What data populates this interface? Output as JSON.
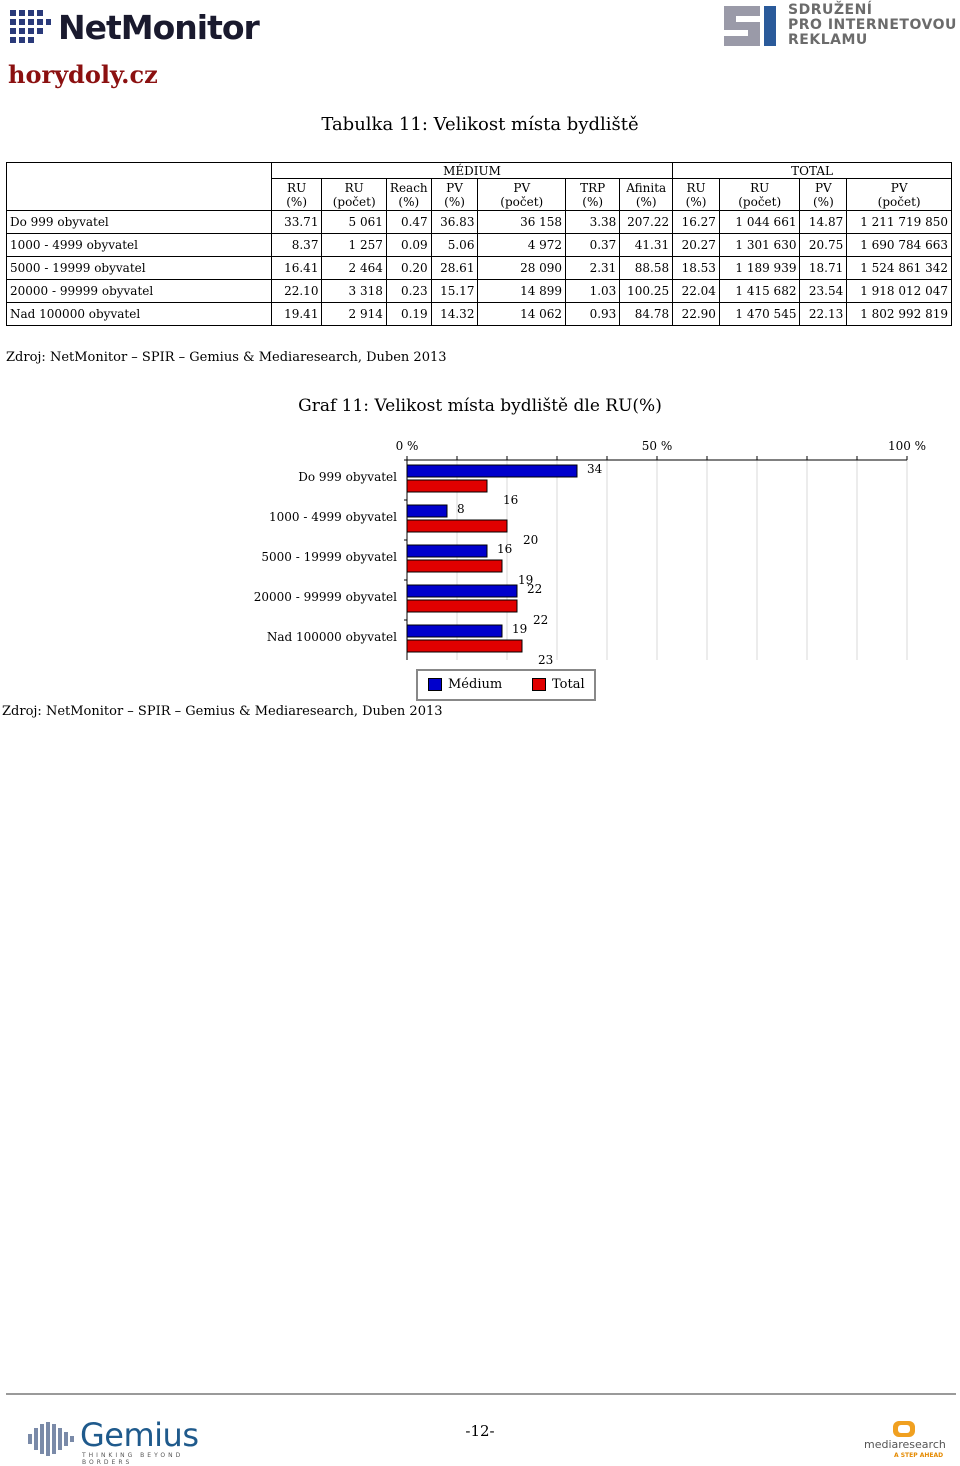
{
  "header": {
    "netmonitor_logo": "NetMonitor",
    "spir_logo": [
      "SDRUŽENÍ",
      "PRO INTERNETOVOU",
      "REKLAMU"
    ],
    "site": "horydoly.cz"
  },
  "table": {
    "title": "Tabulka 11: Velikost místa bydliště",
    "group_medium": "MÉDIUM",
    "group_total": "TOTAL",
    "columns": [
      [
        "RU",
        "(%)"
      ],
      [
        "RU",
        "(počet)"
      ],
      [
        "Reach",
        "(%)"
      ],
      [
        "PV",
        "(%)"
      ],
      [
        "PV",
        "(počet)"
      ],
      [
        "TRP",
        "(%)"
      ],
      [
        "Afinita",
        "(%)"
      ],
      [
        "RU",
        "(%)"
      ],
      [
        "RU",
        "(počet)"
      ],
      [
        "PV",
        "(%)"
      ],
      [
        "PV",
        "(počet)"
      ]
    ],
    "rows": [
      [
        "Do 999 obyvatel",
        "33.71",
        "5 061",
        "0.47",
        "36.83",
        "36 158",
        "3.38",
        "207.22",
        "16.27",
        "1 044 661",
        "14.87",
        "1 211 719 850"
      ],
      [
        "1000 - 4999 obyvatel",
        "8.37",
        "1 257",
        "0.09",
        "5.06",
        "4 972",
        "0.37",
        "41.31",
        "20.27",
        "1 301 630",
        "20.75",
        "1 690 784 663"
      ],
      [
        "5000 - 19999 obyvatel",
        "16.41",
        "2 464",
        "0.20",
        "28.61",
        "28 090",
        "2.31",
        "88.58",
        "18.53",
        "1 189 939",
        "18.71",
        "1 524 861 342"
      ],
      [
        "20000 - 99999 obyvatel",
        "22.10",
        "3 318",
        "0.23",
        "15.17",
        "14 899",
        "1.03",
        "100.25",
        "22.04",
        "1 415 682",
        "23.54",
        "1 918 012 047"
      ],
      [
        "Nad 100000 obyvatel",
        "19.41",
        "2 914",
        "0.19",
        "14.32",
        "14 062",
        "0.93",
        "84.78",
        "22.90",
        "1 470 545",
        "22.13",
        "1 802 992 819"
      ]
    ],
    "source": "Zdroj: NetMonitor – SPIR – Gemius & Mediaresearch, Duben 2013"
  },
  "graph": {
    "title": "Graf 11: Velikost místa bydliště dle RU(%)",
    "source": "Zdroj: NetMonitor – SPIR – Gemius & Mediaresearch, Duben 2013"
  },
  "chart_data": {
    "type": "bar",
    "orientation": "horizontal",
    "categories": [
      "Do 999 obyvatel",
      "1000 - 4999 obyvatel",
      "5000 - 19999 obyvatel",
      "20000 - 99999 obyvatel",
      "Nad 100000 obyvatel"
    ],
    "series": [
      {
        "name": "Médium",
        "values": [
          34,
          8,
          16,
          22,
          19
        ],
        "color": "#0000cc"
      },
      {
        "name": "Total",
        "values": [
          16,
          20,
          19,
          22,
          23
        ],
        "color": "#e00000"
      }
    ],
    "data_labels": [
      [
        "34",
        "8",
        "16",
        "22",
        "19"
      ],
      [
        "16",
        "20",
        "19",
        "22",
        "23"
      ]
    ],
    "x_ticks": [
      "0 %",
      "50 %",
      "100 %"
    ],
    "xlim": [
      0,
      100
    ],
    "gridlines": true,
    "legend_position": "bottom"
  },
  "footer": {
    "gemius_logo": "Gemius",
    "gemius_tagline": "THINKING BEYOND BORDERS",
    "page_number": "-12-",
    "mediaresearch_logo": "mediaresearch",
    "mediaresearch_tagline": "A STEP AHEAD"
  }
}
